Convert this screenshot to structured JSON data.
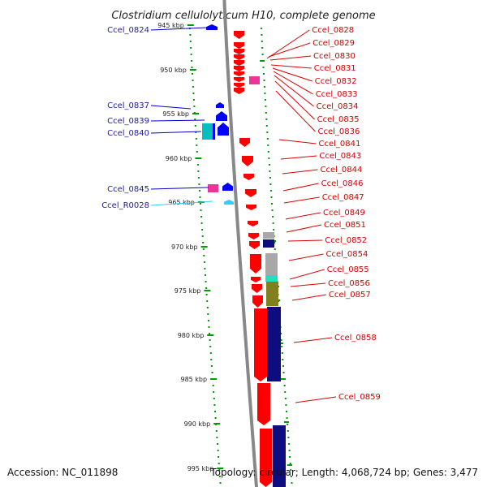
{
  "title": "Clostridium cellulolyticum H10, complete genome",
  "accession": "Accession: NC_011898",
  "topology": "Topology: circular; Length: 4,068,724 bp; Genes: 3,477",
  "colors": {
    "forward_cds": "#ff0000",
    "reverse_cds": "#0000ff",
    "rna": "#33ccff",
    "other": "#ee3399",
    "cog_gray": "#a8a8a8",
    "cog_navy": "#0d0d80",
    "cog_olive": "#808020",
    "cog_teal": "#20e0c0",
    "gc_skew": "#009900",
    "backbone": "#888888"
  },
  "scale_labels": [
    "945 kbp",
    "950 kbp",
    "955 kbp",
    "960 kbp",
    "965 kbp",
    "970 kbp",
    "975 kbp",
    "980 kbp",
    "985 kbp",
    "990 kbp",
    "995 kbp"
  ],
  "left_labels": [
    {
      "text": "Ccel_0824",
      "kind": "cds"
    },
    {
      "text": "Ccel_0837",
      "kind": "cds"
    },
    {
      "text": "Ccel_0839",
      "kind": "cds"
    },
    {
      "text": "Ccel_0840",
      "kind": "cds"
    },
    {
      "text": "Ccel_0845",
      "kind": "cds"
    },
    {
      "text": "Ccel_R0028",
      "kind": "rna"
    }
  ],
  "right_labels": [
    "Ccel_0828",
    "Ccel_0829",
    "Ccel_0830",
    "Ccel_0831",
    "Ccel_0832",
    "Ccel_0833",
    "Ccel_0834",
    "Ccel_0835",
    "Ccel_0836",
    "Ccel_0841",
    "Ccel_0843",
    "Ccel_0844",
    "Ccel_0846",
    "Ccel_0847",
    "Ccel_0849",
    "Ccel_0851",
    "Ccel_0852",
    "Ccel_0854",
    "Ccel_0855",
    "Ccel_0856",
    "Ccel_0857",
    "Ccel_0858",
    "Ccel_0859"
  ]
}
